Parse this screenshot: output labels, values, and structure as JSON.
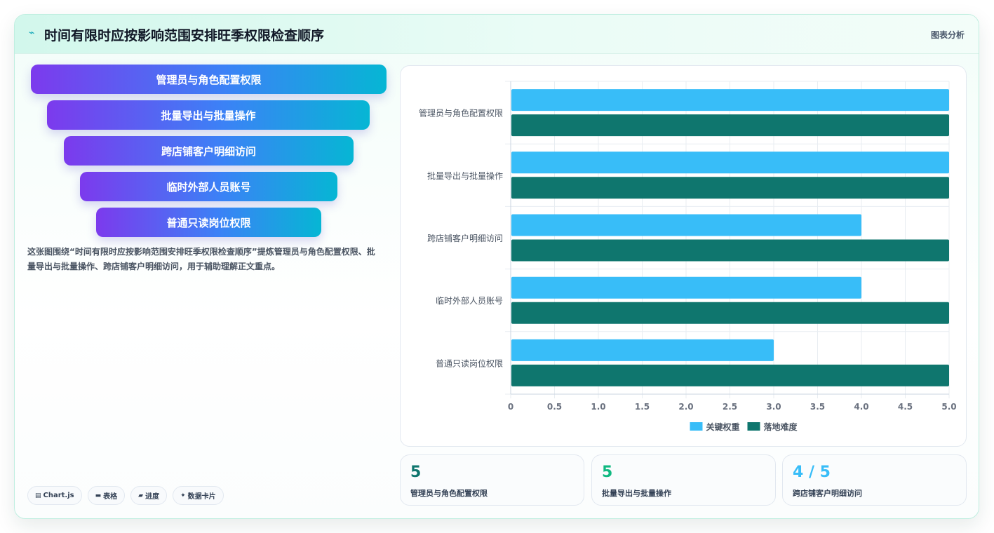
{
  "header": {
    "title": "时间有限时应按影响范围安排旺季权限检查顺序",
    "tag": "图表分析",
    "icon": "trend-icon"
  },
  "funnel": {
    "steps": [
      "管理员与角色配置权限",
      "批量导出与批量操作",
      "跨店铺客户明细访问",
      "临时外部人员账号",
      "普通只读岗位权限"
    ]
  },
  "description": "这张图围绕“时间有限时应按影响范围安排旺季权限检查顺序”提炼管理员与角色配置权限、批量导出与批量操作、跨店铺客户明细访问，用于辅助理解正文重点。",
  "chips": [
    {
      "icon": "chart-icon",
      "glyph": "▤",
      "label": "Chart.js"
    },
    {
      "icon": "table-icon",
      "glyph": "▬",
      "label": "表格"
    },
    {
      "icon": "progress-icon",
      "glyph": "▰",
      "label": "进度"
    },
    {
      "icon": "sparkle-icon",
      "glyph": "✦",
      "label": "数据卡片"
    }
  ],
  "chart_data": {
    "type": "bar",
    "orientation": "horizontal",
    "categories": [
      "管理员与角色配置权限",
      "批量导出与批量操作",
      "跨店铺客户明细访问",
      "临时外部人员账号",
      "普通只读岗位权限"
    ],
    "series": [
      {
        "name": "关键权重",
        "color": "#38bdf8",
        "values": [
          5,
          5,
          4,
          4,
          3
        ]
      },
      {
        "name": "落地难度",
        "color": "#0f766e",
        "values": [
          5,
          5,
          5,
          5,
          5
        ]
      }
    ],
    "xlim": [
      0,
      5
    ],
    "xticks": [
      "0",
      "0.5",
      "1.0",
      "1.5",
      "2.0",
      "2.5",
      "3.0",
      "3.5",
      "4.0",
      "4.5",
      "5.0"
    ],
    "grid": true,
    "legend": "bottom"
  },
  "stats": [
    {
      "value": "5",
      "label": "管理员与角色配置权限",
      "color": "#0f766e"
    },
    {
      "value": "5",
      "label": "批量导出与批量操作",
      "color": "#10b981"
    },
    {
      "value": "4 / 5",
      "label": "跨店铺客户明细访问",
      "color": "#38bdf8"
    }
  ]
}
